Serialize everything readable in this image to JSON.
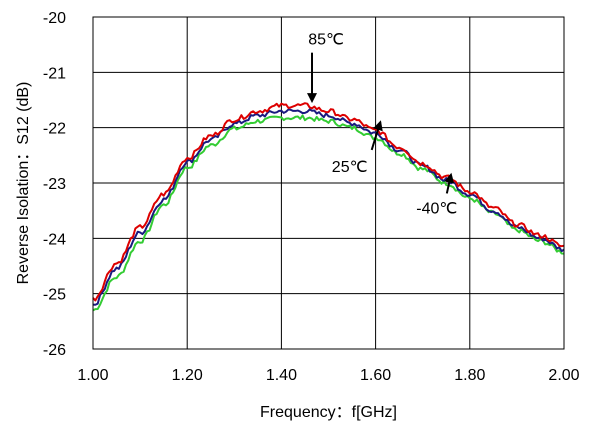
{
  "chart_data": {
    "type": "line",
    "xlabel": "Frequency：f[GHz]",
    "ylabel": "Reverse Isolation：S12 (dB)",
    "xlim": [
      1.0,
      2.0
    ],
    "ylim": [
      -26,
      -20
    ],
    "grid": true,
    "x_ticks": [
      "1.00",
      "1.20",
      "1.40",
      "1.60",
      "1.80",
      "2.00"
    ],
    "y_ticks": [
      "-20",
      "-21",
      "-22",
      "-23",
      "-24",
      "-25",
      "-26"
    ],
    "series": [
      {
        "name": "85℃",
        "color": "#dd0000",
        "x": [
          1.0,
          1.05,
          1.1,
          1.15,
          1.2,
          1.25,
          1.3,
          1.35,
          1.4,
          1.45,
          1.5,
          1.55,
          1.6,
          1.65,
          1.7,
          1.75,
          1.8,
          1.85,
          1.9,
          1.95,
          2.0
        ],
        "y": [
          -25.1,
          -24.45,
          -23.8,
          -23.2,
          -22.55,
          -22.15,
          -21.85,
          -21.7,
          -21.6,
          -21.6,
          -21.7,
          -21.85,
          -22.05,
          -22.35,
          -22.65,
          -22.9,
          -23.15,
          -23.45,
          -23.75,
          -23.95,
          -24.15
        ]
      },
      {
        "name": "25℃",
        "color": "#1a1a80",
        "x": [
          1.0,
          1.05,
          1.1,
          1.15,
          1.2,
          1.25,
          1.3,
          1.35,
          1.4,
          1.45,
          1.5,
          1.55,
          1.6,
          1.65,
          1.7,
          1.75,
          1.8,
          1.85,
          1.9,
          1.95,
          2.0
        ],
        "y": [
          -25.2,
          -24.55,
          -23.9,
          -23.3,
          -22.62,
          -22.22,
          -21.93,
          -21.78,
          -21.7,
          -21.7,
          -21.78,
          -21.92,
          -22.1,
          -22.4,
          -22.7,
          -22.95,
          -23.2,
          -23.5,
          -23.8,
          -24.0,
          -24.2
        ]
      },
      {
        "name": "-40℃",
        "color": "#33cc33",
        "x": [
          1.0,
          1.05,
          1.1,
          1.15,
          1.2,
          1.25,
          1.3,
          1.35,
          1.4,
          1.45,
          1.5,
          1.55,
          1.6,
          1.65,
          1.7,
          1.75,
          1.8,
          1.85,
          1.9,
          1.95,
          2.0
        ],
        "y": [
          -25.3,
          -24.7,
          -24.05,
          -23.4,
          -22.72,
          -22.32,
          -22.02,
          -21.88,
          -21.82,
          -21.82,
          -21.88,
          -22.0,
          -22.18,
          -22.46,
          -22.75,
          -23.0,
          -23.28,
          -23.55,
          -23.85,
          -24.05,
          -24.25
        ]
      }
    ],
    "annotations": [
      {
        "text": "85℃",
        "x": 1.495,
        "y": -20.5,
        "arrow_to": [
          1.465,
          -21.52
        ]
      },
      {
        "text": "25℃",
        "x": 1.545,
        "y": -22.8,
        "arrow_to": [
          1.61,
          -21.9
        ]
      },
      {
        "text": "-40℃",
        "x": 1.73,
        "y": -23.55,
        "arrow_to": [
          1.76,
          -22.85
        ]
      }
    ]
  }
}
